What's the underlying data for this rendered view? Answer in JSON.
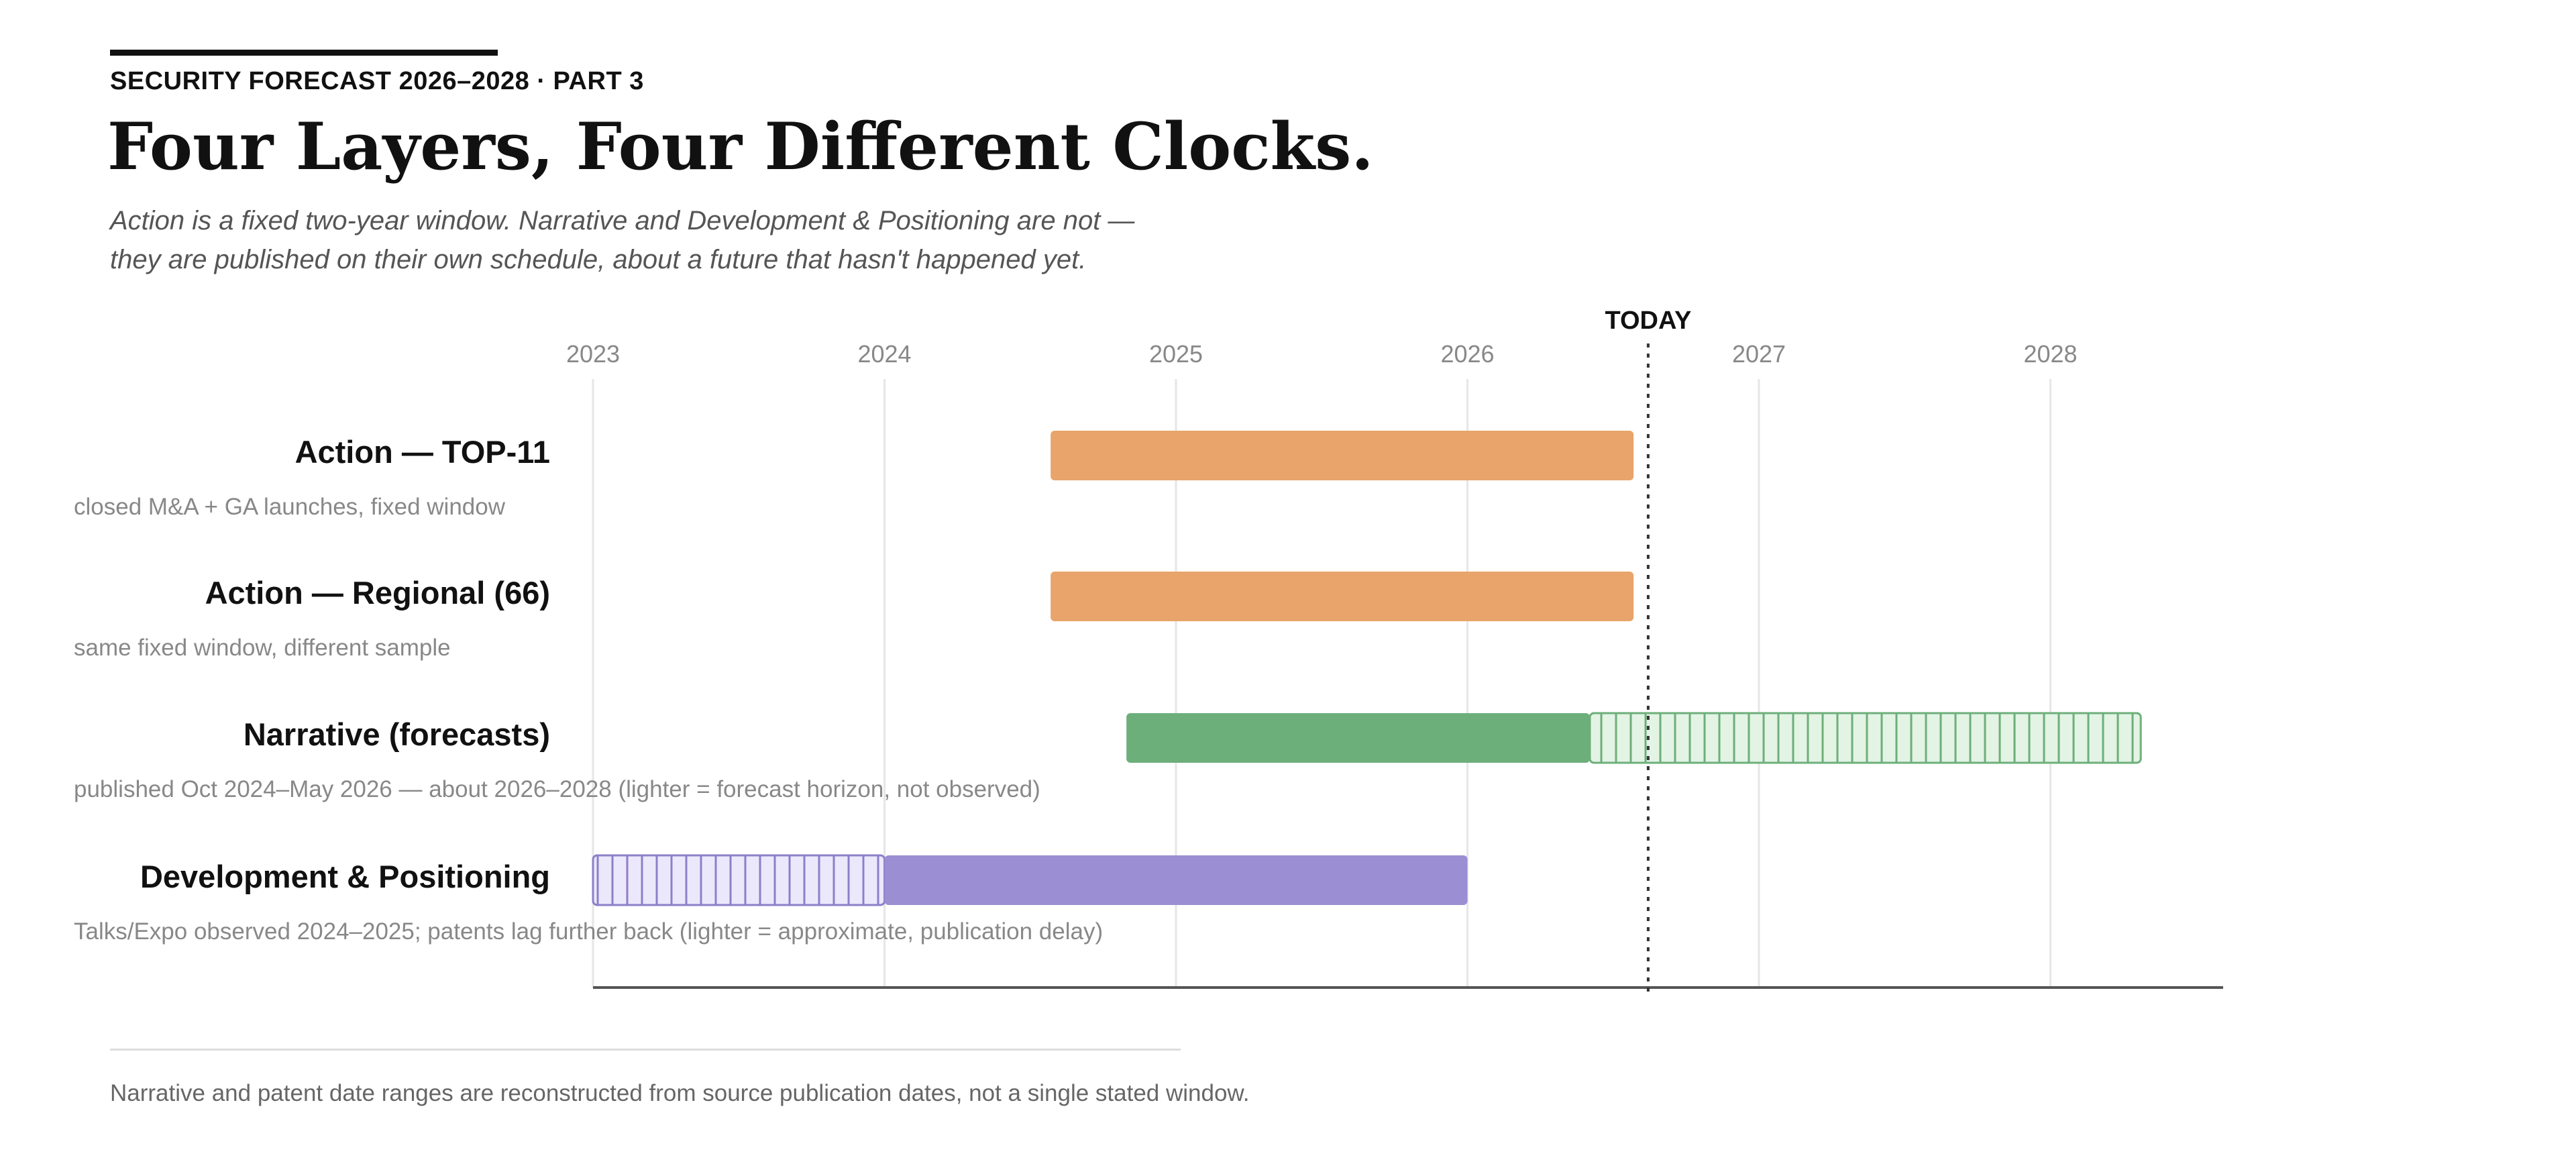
{
  "header": {
    "kicker": "SECURITY FORECAST 2026–2028 · PART 3",
    "title": "Four Layers, Four Different Clocks.",
    "subtitle_lines": [
      "Action is a fixed two-year window. Narrative and Development & Positioning are not —",
      "they are published on their own schedule, about a future that hasn't happened yet."
    ]
  },
  "footnote": "Narrative and patent date ranges are reconstructed from source publication dates, not a single stated window.",
  "chart_data": {
    "type": "timeline",
    "title": "Four Layers, Four Different Clocks.",
    "x_axis": {
      "ticks": [
        "2023",
        "2024",
        "2025",
        "2026",
        "2027",
        "2028"
      ],
      "range": [
        2023.0,
        2029.2
      ]
    },
    "today": {
      "label": "TODAY",
      "value": 2026.62
    },
    "colors": {
      "action": "#e8a46a",
      "narrative": "#6daf7a",
      "narrative_light": "#e3f3e4",
      "narrative_stroke": "#6daf7a",
      "development": "#9b8ed2",
      "development_light": "#ece8fb",
      "development_stroke": "#8d7fca"
    },
    "rows": [
      {
        "label": "Action — TOP-11",
        "note": "closed M&A + GA launches, fixed window",
        "segments": [
          {
            "start": 2024.57,
            "end": 2026.57,
            "style": "solid",
            "color_key": "action"
          }
        ]
      },
      {
        "label": "Action — Regional (66)",
        "note": "same fixed window, different sample",
        "segments": [
          {
            "start": 2024.57,
            "end": 2026.57,
            "style": "solid",
            "color_key": "action"
          }
        ]
      },
      {
        "label": "Narrative (forecasts)",
        "note": "published Oct 2024–May 2026 — about 2026–2028 (lighter = forecast horizon, not observed)",
        "segments": [
          {
            "start": 2024.83,
            "end": 2026.42,
            "style": "solid",
            "color_key": "narrative"
          },
          {
            "start": 2026.42,
            "end": 2028.31,
            "style": "hatched",
            "color_key": "narrative"
          }
        ]
      },
      {
        "label": "Development & Positioning",
        "note": "Talks/Expo observed 2024–2025; patents lag further back (lighter = approximate, publication delay)",
        "segments": [
          {
            "start": 2023.0,
            "end": 2024.0,
            "style": "hatched",
            "color_key": "development"
          },
          {
            "start": 2024.0,
            "end": 2026.0,
            "style": "solid",
            "color_key": "development"
          }
        ]
      }
    ]
  }
}
